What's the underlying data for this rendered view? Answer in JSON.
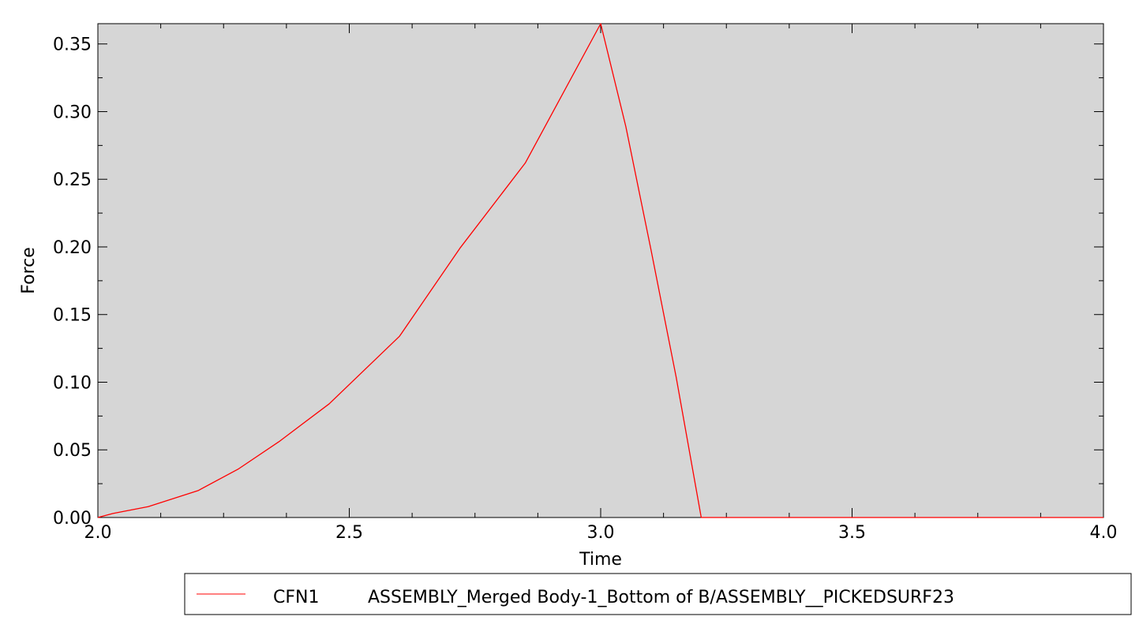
{
  "chart_data": {
    "type": "line",
    "xlabel": "Time",
    "ylabel": "Force",
    "xlim": [
      2.0,
      4.0
    ],
    "ylim": [
      0.0,
      0.365
    ],
    "x_ticks": [
      2.0,
      2.5,
      3.0,
      3.5,
      4.0
    ],
    "x_tick_labels": [
      "2.0",
      "2.5",
      "3.0",
      "3.5",
      "4.0"
    ],
    "y_ticks": [
      0.0,
      0.05,
      0.1,
      0.15,
      0.2,
      0.25,
      0.3,
      0.35
    ],
    "y_tick_labels": [
      "0.00",
      "0.05",
      "0.10",
      "0.15",
      "0.20",
      "0.25",
      "0.30",
      "0.35"
    ],
    "grid": false,
    "plot_background": "#d6d6d6",
    "legend_position": "bottom-right",
    "series": [
      {
        "name": "CFN1",
        "legend_label": "ASSEMBLY_Merged Body-1_Bottom of B/ASSEMBLY__PICKEDSURF23",
        "color": "#ff0000",
        "x": [
          2.0,
          2.03,
          2.1,
          2.2,
          2.28,
          2.36,
          2.46,
          2.6,
          2.72,
          2.85,
          3.0,
          3.05,
          3.1,
          3.15,
          3.2,
          3.3,
          3.5,
          3.75,
          4.0
        ],
        "y": [
          0.0,
          0.003,
          0.008,
          0.02,
          0.036,
          0.056,
          0.084,
          0.134,
          0.199,
          0.262,
          0.365,
          0.289,
          0.198,
          0.104,
          0.0,
          0.0,
          0.0,
          0.0,
          0.0
        ]
      }
    ]
  }
}
